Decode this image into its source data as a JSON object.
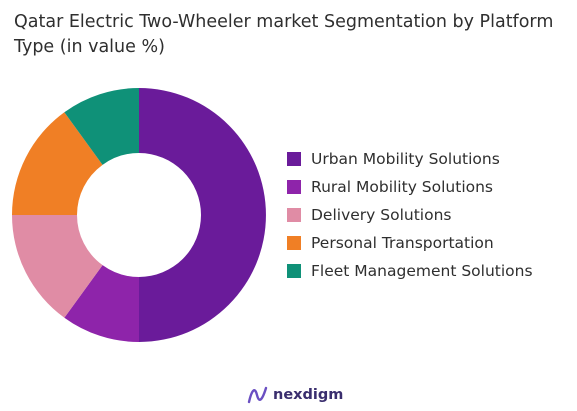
{
  "chart_data": {
    "type": "pie",
    "donut": true,
    "title": "Qatar Electric Two-Wheeler market Segmentation by Platform Type (in value %)",
    "categories": [
      "Urban Mobility Solutions",
      "Rural Mobility Solutions",
      "Delivery Solutions",
      "Personal Transportation",
      "Fleet Management Solutions"
    ],
    "values": [
      50,
      10,
      15,
      15,
      10
    ],
    "colors": [
      "#6a1b9a",
      "#8e24aa",
      "#e08ca5",
      "#f07f25",
      "#0f9178"
    ],
    "legend_position": "right"
  },
  "brand": {
    "name": "nexdigm",
    "color": "#3a2e6e"
  }
}
